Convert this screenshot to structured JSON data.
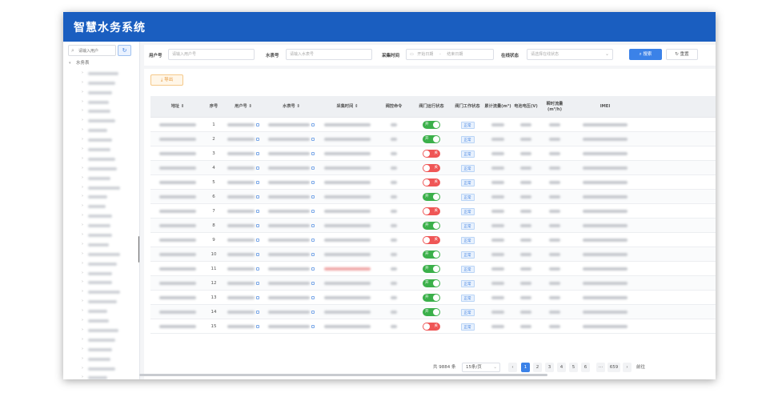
{
  "app": {
    "title": "智慧水务系统"
  },
  "sidebar": {
    "search_placeholder": "请输入用户",
    "refresh_icon": "refresh-icon",
    "root_label": "水务表",
    "item_count": 37
  },
  "filters": {
    "user_no_label": "用户号",
    "user_no_placeholder": "请输入用户号",
    "meter_no_label": "水表号",
    "meter_no_placeholder": "请输入水表号",
    "collect_time_label": "采集时间",
    "start_date_placeholder": "开始日期",
    "end_date_placeholder": "结束日期",
    "date_separator": "-",
    "online_status_label": "在线状态",
    "online_status_placeholder": "请选择在线状态",
    "search_button": "搜索",
    "reset_button": "重置"
  },
  "toolbar": {
    "export_button": "导出"
  },
  "table": {
    "columns": [
      {
        "key": "address",
        "label": "地址 ⇕"
      },
      {
        "key": "seq",
        "label": "序号"
      },
      {
        "key": "user_no",
        "label": "用户号 ⇕"
      },
      {
        "key": "meter_no",
        "label": "水表号 ⇕"
      },
      {
        "key": "collect_time",
        "label": "采集时间 ⇕"
      },
      {
        "key": "valve_cmd",
        "label": "阀控命令"
      },
      {
        "key": "valve_status",
        "label": "阀门运行状态"
      },
      {
        "key": "valve_work",
        "label": "阀门工作状态"
      },
      {
        "key": "total_flow",
        "label": "累计流量(m³)"
      },
      {
        "key": "voltage",
        "label": "电池电压(V)"
      },
      {
        "key": "instant_flow",
        "label": "瞬时流量(m³/h)"
      },
      {
        "key": "imei",
        "label": "IMEI"
      }
    ],
    "valve_on_label": "开",
    "valve_off_label": "关",
    "work_status_label": "正常",
    "rows": [
      {
        "seq": "1",
        "valve": "on"
      },
      {
        "seq": "2",
        "valve": "on"
      },
      {
        "seq": "3",
        "valve": "off"
      },
      {
        "seq": "4",
        "valve": "off"
      },
      {
        "seq": "5",
        "valve": "off"
      },
      {
        "seq": "6",
        "valve": "on"
      },
      {
        "seq": "7",
        "valve": "off"
      },
      {
        "seq": "8",
        "valve": "on"
      },
      {
        "seq": "9",
        "valve": "off"
      },
      {
        "seq": "10",
        "valve": "on"
      },
      {
        "seq": "11",
        "valve": "on"
      },
      {
        "seq": "12",
        "valve": "on"
      },
      {
        "seq": "13",
        "valve": "on"
      },
      {
        "seq": "14",
        "valve": "on"
      },
      {
        "seq": "15",
        "valve": "off"
      }
    ]
  },
  "pagination": {
    "total_text": "共 9884 条",
    "page_size": "15条/页",
    "pages": [
      "1",
      "2",
      "3",
      "4",
      "5",
      "6"
    ],
    "ellipsis": "···",
    "last_page": "659",
    "prev": "‹",
    "next": "›",
    "goto": "前往",
    "current_page": 1
  },
  "colors": {
    "header_bg": "#1a5ec0",
    "primary": "#3b82e8",
    "switch_on": "#3bb04a",
    "switch_off": "#ef5656",
    "export": "#e6973a"
  }
}
